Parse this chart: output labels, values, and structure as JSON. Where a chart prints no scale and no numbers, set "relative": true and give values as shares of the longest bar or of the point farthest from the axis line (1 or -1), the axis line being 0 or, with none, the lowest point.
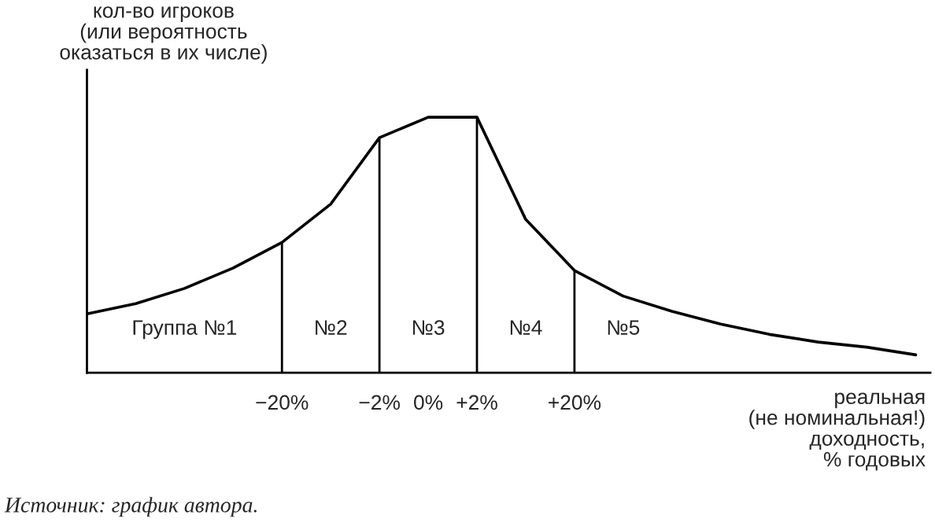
{
  "chart_data": {
    "type": "line",
    "relative": true,
    "ylabel": "кол-во игроков\n(или вероятность\nоказаться в их числе)",
    "xlabel": "реальная\n(не номинальная!)\nдоходность,\n% годовых",
    "categories": [
      null,
      null,
      null,
      null,
      "−20%",
      null,
      "−2%",
      "0%",
      "+2%",
      null,
      "+20%",
      null,
      null,
      null,
      null,
      null,
      null,
      null
    ],
    "series": [
      {
        "color": "#000000",
        "values": [
          0.23,
          0.27,
          0.33,
          0.41,
          0.51,
          0.66,
          0.92,
          1.0,
          1.0,
          0.6,
          0.4,
          0.3,
          0.24,
          0.19,
          0.15,
          0.12,
          0.1,
          0.07
        ]
      }
    ],
    "ref_lines": [
      {
        "axis": "x",
        "value": "−20%",
        "color": "#000000"
      },
      {
        "axis": "x",
        "value": "−2%",
        "color": "#000000"
      },
      {
        "axis": "x",
        "value": "+2%",
        "color": "#000000"
      },
      {
        "axis": "x",
        "value": "+20%",
        "color": "#000000"
      }
    ],
    "annotations": [
      "Группа №1",
      "№2",
      "№3",
      "№4",
      "№5",
      "Источник: график автора."
    ]
  }
}
